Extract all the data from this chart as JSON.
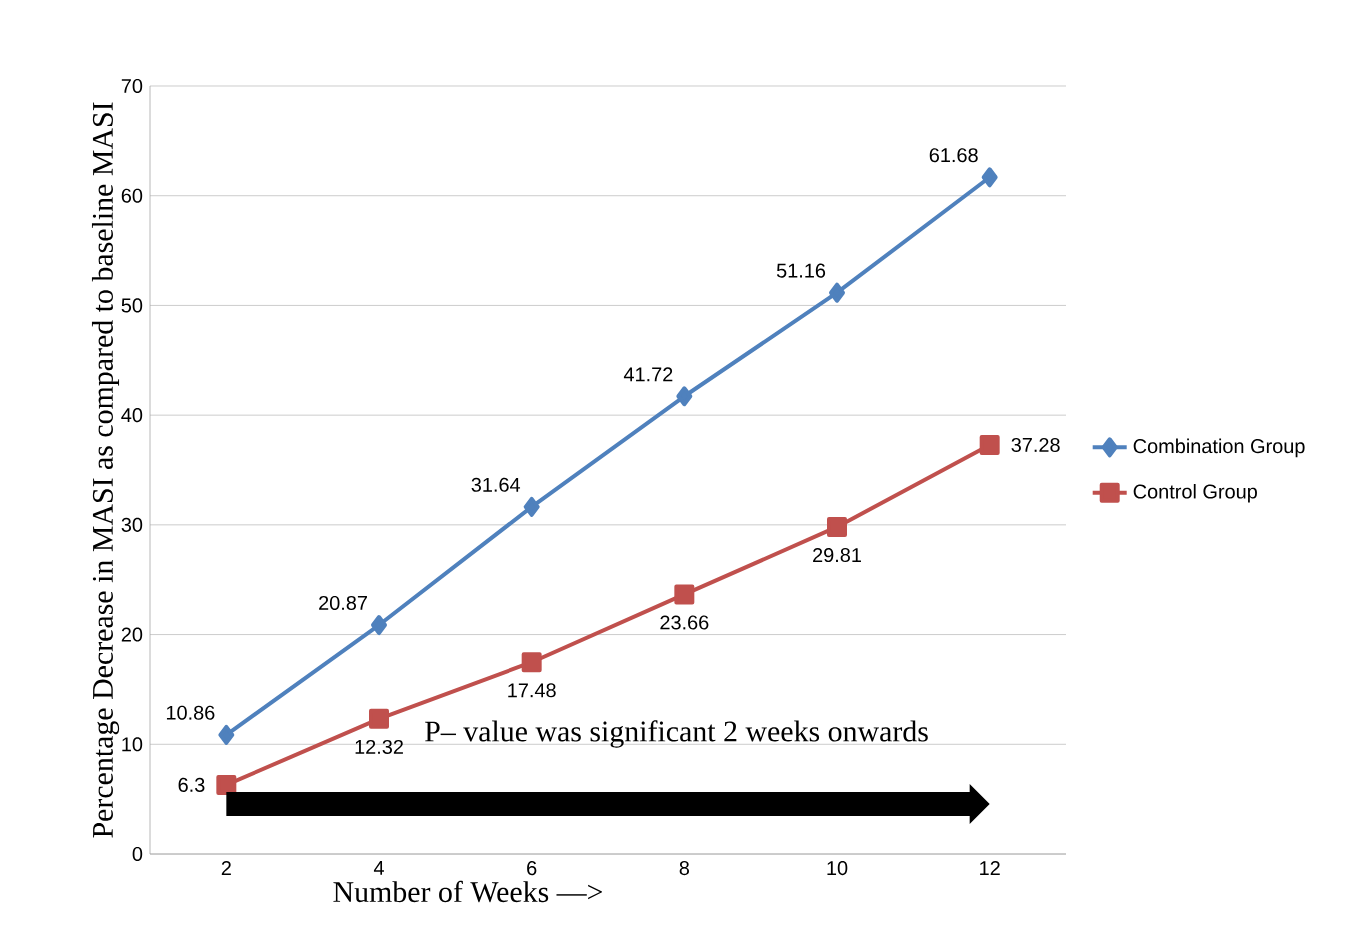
{
  "chart_data": {
    "type": "line",
    "ylabel": "Percentage Decrease in MASI as compared to baseline MASI",
    "xlabel": "Number of Weeks —>",
    "categories": [
      "2",
      "4",
      "6",
      "8",
      "10",
      "12"
    ],
    "series": [
      {
        "name": "Combination Group",
        "color": "#4f81bd",
        "marker": "diamond",
        "values": [
          10.86,
          20.87,
          31.64,
          41.72,
          51.16,
          61.68
        ]
      },
      {
        "name": "Control Group",
        "color": "#c0504d",
        "marker": "square",
        "values": [
          6.3,
          12.32,
          17.48,
          23.66,
          29.81,
          37.28
        ]
      }
    ],
    "ylim": [
      0,
      70
    ],
    "yticks": [
      0,
      10,
      20,
      30,
      40,
      50,
      60,
      70
    ],
    "grid": "y",
    "legend": "right",
    "data_labels": true,
    "annotations": [
      "P– value was significant 2 weeks onwards"
    ]
  }
}
